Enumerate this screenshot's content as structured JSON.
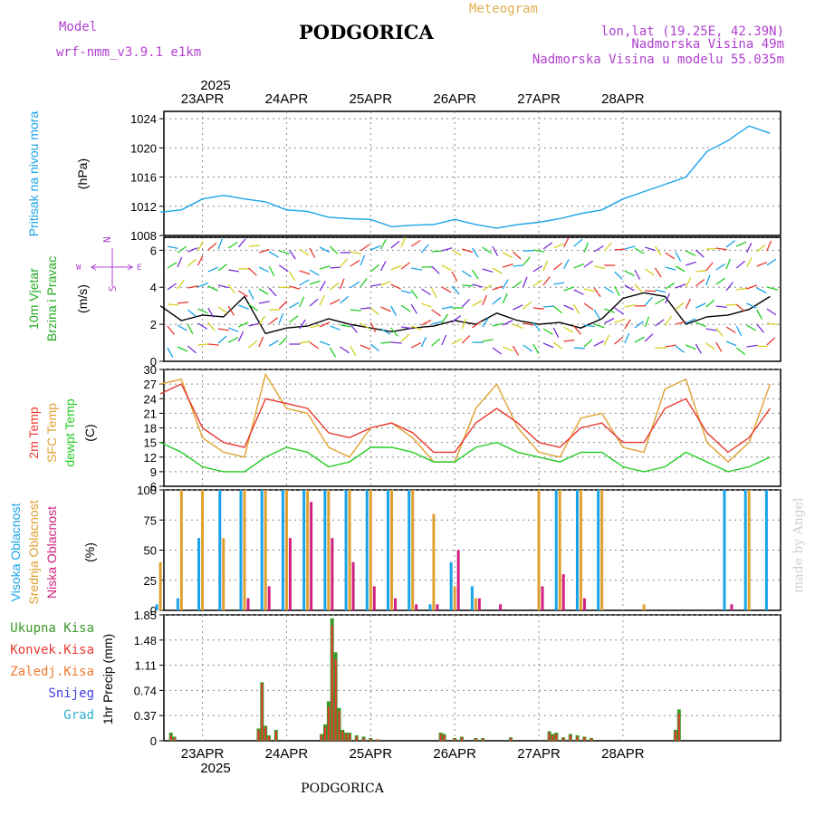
{
  "header": {
    "model_label": "Model",
    "model_name": "wrf-nmm_v3.9.1 e1km",
    "title": "PODGORICA",
    "meteogram_label": "Meteogram",
    "lonlat": "lon,lat (19.25E, 42.39N)",
    "elevation": "Nadmorska Visina 49m",
    "model_elevation": "Nadmorska Visina u modelu 55.035m"
  },
  "colors": {
    "pressure": "#1aa3e8",
    "wind_label": "#22aa22",
    "wind_speed": "#000000",
    "temp_2m": "#e8392e",
    "temp_sfc": "#e0a030",
    "dewpoint": "#22cc22",
    "cloud_high": "#1aa3e8",
    "cloud_mid": "#e0a030",
    "cloud_low": "#d02080",
    "precip_total": "#3a9a2a",
    "precip_conv": "#e8392e",
    "precip_frozen": "#f07830",
    "snow": "#4040e0",
    "hail": "#30b0d0",
    "compass": "#b040d0",
    "header_purple": "#b040d0",
    "header_orange": "#e0b050",
    "watermark": "#d0d0d0"
  },
  "top_year": "2025",
  "bottom_year": "2025",
  "footer": "PODGORICA",
  "watermark": "made by Angel",
  "compass": {
    "n": "N",
    "s": "S",
    "e": "E",
    "w": "W"
  },
  "chart_data": [
    {
      "type": "line",
      "panel": "pressure",
      "ylabel": "Pritisak na nivou mora",
      "unit": "(hPa)",
      "x_dates": [
        "23APR",
        "24APR",
        "25APR",
        "26APR",
        "27APR",
        "28APR"
      ],
      "yticks": [
        1008,
        1012,
        1016,
        1020,
        1024
      ],
      "ylim": [
        1008,
        1025
      ],
      "x_hours": [
        0,
        6,
        12,
        18,
        24,
        30,
        36,
        42,
        48,
        54,
        60,
        66,
        72,
        78,
        84,
        90,
        96,
        102,
        108,
        114,
        120,
        126,
        132,
        138,
        144,
        150,
        156,
        162,
        168,
        174
      ],
      "series": [
        {
          "values": [
            1011.2,
            1011.5,
            1013.0,
            1013.5,
            1013.0,
            1012.6,
            1011.5,
            1011.3,
            1010.5,
            1010.3,
            1010.2,
            1009.2,
            1009.4,
            1009.5,
            1010.2,
            1009.5,
            1009.0,
            1009.5,
            1009.8,
            1010.3,
            1011.0,
            1011.5,
            1013.0,
            1014.0,
            1015.0,
            1016.0,
            1019.5,
            1021.0,
            1023.0,
            1022.0
          ]
        }
      ]
    },
    {
      "type": "line",
      "panel": "wind",
      "ylabel": "10m Vjetar Brzina i Pravac",
      "unit": "(m/s)",
      "yticks": [
        0,
        2,
        4,
        6
      ],
      "ylim": [
        0,
        6.7
      ],
      "x_hours": [
        0,
        6,
        12,
        18,
        24,
        30,
        36,
        42,
        48,
        54,
        60,
        66,
        72,
        78,
        84,
        90,
        96,
        102,
        108,
        114,
        120,
        126,
        132,
        138,
        144,
        150,
        156,
        162,
        168,
        174
      ],
      "series": [
        {
          "values": [
            3.0,
            2.2,
            2.5,
            2.4,
            3.5,
            1.5,
            1.8,
            1.9,
            2.3,
            2.0,
            1.8,
            1.6,
            1.8,
            1.9,
            2.2,
            2.0,
            2.6,
            2.2,
            2.0,
            2.1,
            1.8,
            2.3,
            3.4,
            3.7,
            3.5,
            2.0,
            2.4,
            2.5,
            2.8,
            3.5
          ]
        }
      ]
    },
    {
      "type": "line",
      "panel": "temperature",
      "ylabel": [
        "2m Temp",
        "SFC Temp",
        "dewpt Temp"
      ],
      "unit": "(C)",
      "yticks": [
        6,
        9,
        12,
        15,
        18,
        21,
        24,
        27,
        30
      ],
      "ylim": [
        6,
        30
      ],
      "x_hours": [
        0,
        6,
        12,
        18,
        24,
        30,
        36,
        42,
        48,
        54,
        60,
        66,
        72,
        78,
        84,
        90,
        96,
        102,
        108,
        114,
        120,
        126,
        132,
        138,
        144,
        150,
        156,
        162,
        168,
        174
      ],
      "series": [
        {
          "name": "2m Temp",
          "values": [
            25,
            27,
            18,
            15,
            14,
            24,
            23,
            22,
            17,
            16,
            18,
            19,
            17,
            13,
            13,
            19,
            22,
            19,
            15,
            14,
            18,
            19,
            15,
            15,
            22,
            24,
            17,
            13,
            16,
            22
          ]
        },
        {
          "name": "SFC Temp",
          "values": [
            27,
            28,
            16,
            13,
            12,
            29,
            22,
            21,
            14,
            12,
            18,
            19,
            16,
            11,
            11,
            22,
            27,
            18,
            13,
            12,
            20,
            21,
            14,
            13,
            26,
            28,
            15,
            11,
            15,
            27
          ]
        },
        {
          "name": "dewpt Temp",
          "values": [
            15,
            13,
            10,
            9,
            9,
            12,
            14,
            13,
            10,
            11,
            14,
            14,
            13,
            11,
            11,
            14,
            15,
            13,
            12,
            11,
            13,
            13,
            10,
            9,
            10,
            13,
            11,
            9,
            10,
            12
          ]
        }
      ]
    },
    {
      "type": "bar",
      "panel": "clouds",
      "ylabel": [
        "Visoka Oblacnost",
        "Srednja Oblacnost",
        "Niska Oblacnost"
      ],
      "unit": "(%)",
      "yticks": [
        0,
        25,
        50,
        75,
        100
      ],
      "ylim": [
        0,
        100
      ],
      "x_hours": [
        0,
        6,
        12,
        18,
        24,
        30,
        36,
        42,
        48,
        54,
        60,
        66,
        72,
        78,
        84,
        90,
        96,
        102,
        108,
        114,
        120,
        126,
        132,
        138,
        144,
        150,
        156,
        162,
        168,
        174
      ],
      "series": [
        {
          "name": "Visoka Oblacnost",
          "values": [
            5,
            10,
            60,
            100,
            100,
            100,
            100,
            100,
            100,
            100,
            100,
            100,
            100,
            5,
            40,
            20,
            0,
            0,
            0,
            100,
            100,
            100,
            0,
            0,
            0,
            0,
            0,
            100,
            100,
            100
          ]
        },
        {
          "name": "Srednja Oblacnost",
          "values": [
            40,
            100,
            100,
            60,
            100,
            100,
            100,
            100,
            100,
            100,
            100,
            100,
            100,
            80,
            20,
            10,
            0,
            0,
            100,
            100,
            100,
            100,
            0,
            5,
            0,
            0,
            0,
            0,
            100,
            0
          ]
        },
        {
          "name": "Niska Oblacnost",
          "values": [
            0,
            0,
            0,
            0,
            10,
            20,
            60,
            90,
            60,
            40,
            20,
            10,
            5,
            5,
            50,
            10,
            5,
            0,
            20,
            30,
            10,
            0,
            0,
            0,
            0,
            0,
            0,
            5,
            0,
            0
          ]
        }
      ]
    },
    {
      "type": "bar",
      "panel": "precipitation",
      "ylabel": "1hr Precip",
      "unit": "(mm)",
      "legend": [
        "Ukupna Kisa",
        "Konvek.Kisa",
        "Zaledj.Kisa",
        "Snijeg",
        "Grad"
      ],
      "yticks": [
        0,
        0.37,
        0.74,
        1.11,
        1.48,
        1.85
      ],
      "ylim": [
        0,
        1.85
      ],
      "x_hours": [
        3,
        4,
        28,
        29,
        30,
        31,
        33,
        46,
        47,
        48,
        49,
        50,
        51,
        52,
        53,
        54,
        56,
        58,
        60,
        62,
        80,
        81,
        84,
        86,
        90,
        92,
        100,
        111,
        112,
        113,
        115,
        117,
        119,
        121,
        123,
        147,
        148
      ],
      "series": [
        {
          "name": "Ukupna Kisa",
          "values": [
            0.12,
            0.06,
            0.18,
            0.86,
            0.22,
            0.08,
            0.16,
            0.1,
            0.24,
            0.58,
            1.8,
            1.3,
            0.48,
            0.16,
            0.12,
            0.12,
            0.08,
            0.06,
            0.04,
            0.02,
            0.12,
            0.1,
            0.04,
            0.06,
            0.04,
            0.04,
            0.05,
            0.14,
            0.1,
            0.12,
            0.05,
            0.1,
            0.08,
            0.06,
            0.04,
            0.16,
            0.46
          ]
        },
        {
          "name": "Konvek.Kisa",
          "values": [
            0.08,
            0.04,
            0.16,
            0.84,
            0.2,
            0.06,
            0.14,
            0.08,
            0.2,
            0.5,
            1.7,
            1.2,
            0.44,
            0.14,
            0.1,
            0.1,
            0.06,
            0.04,
            0.03,
            0.02,
            0.1,
            0.08,
            0.03,
            0.05,
            0.03,
            0.03,
            0.04,
            0.12,
            0.08,
            0.1,
            0.04,
            0.08,
            0.06,
            0.05,
            0.03,
            0.14,
            0.4
          ]
        }
      ]
    }
  ]
}
